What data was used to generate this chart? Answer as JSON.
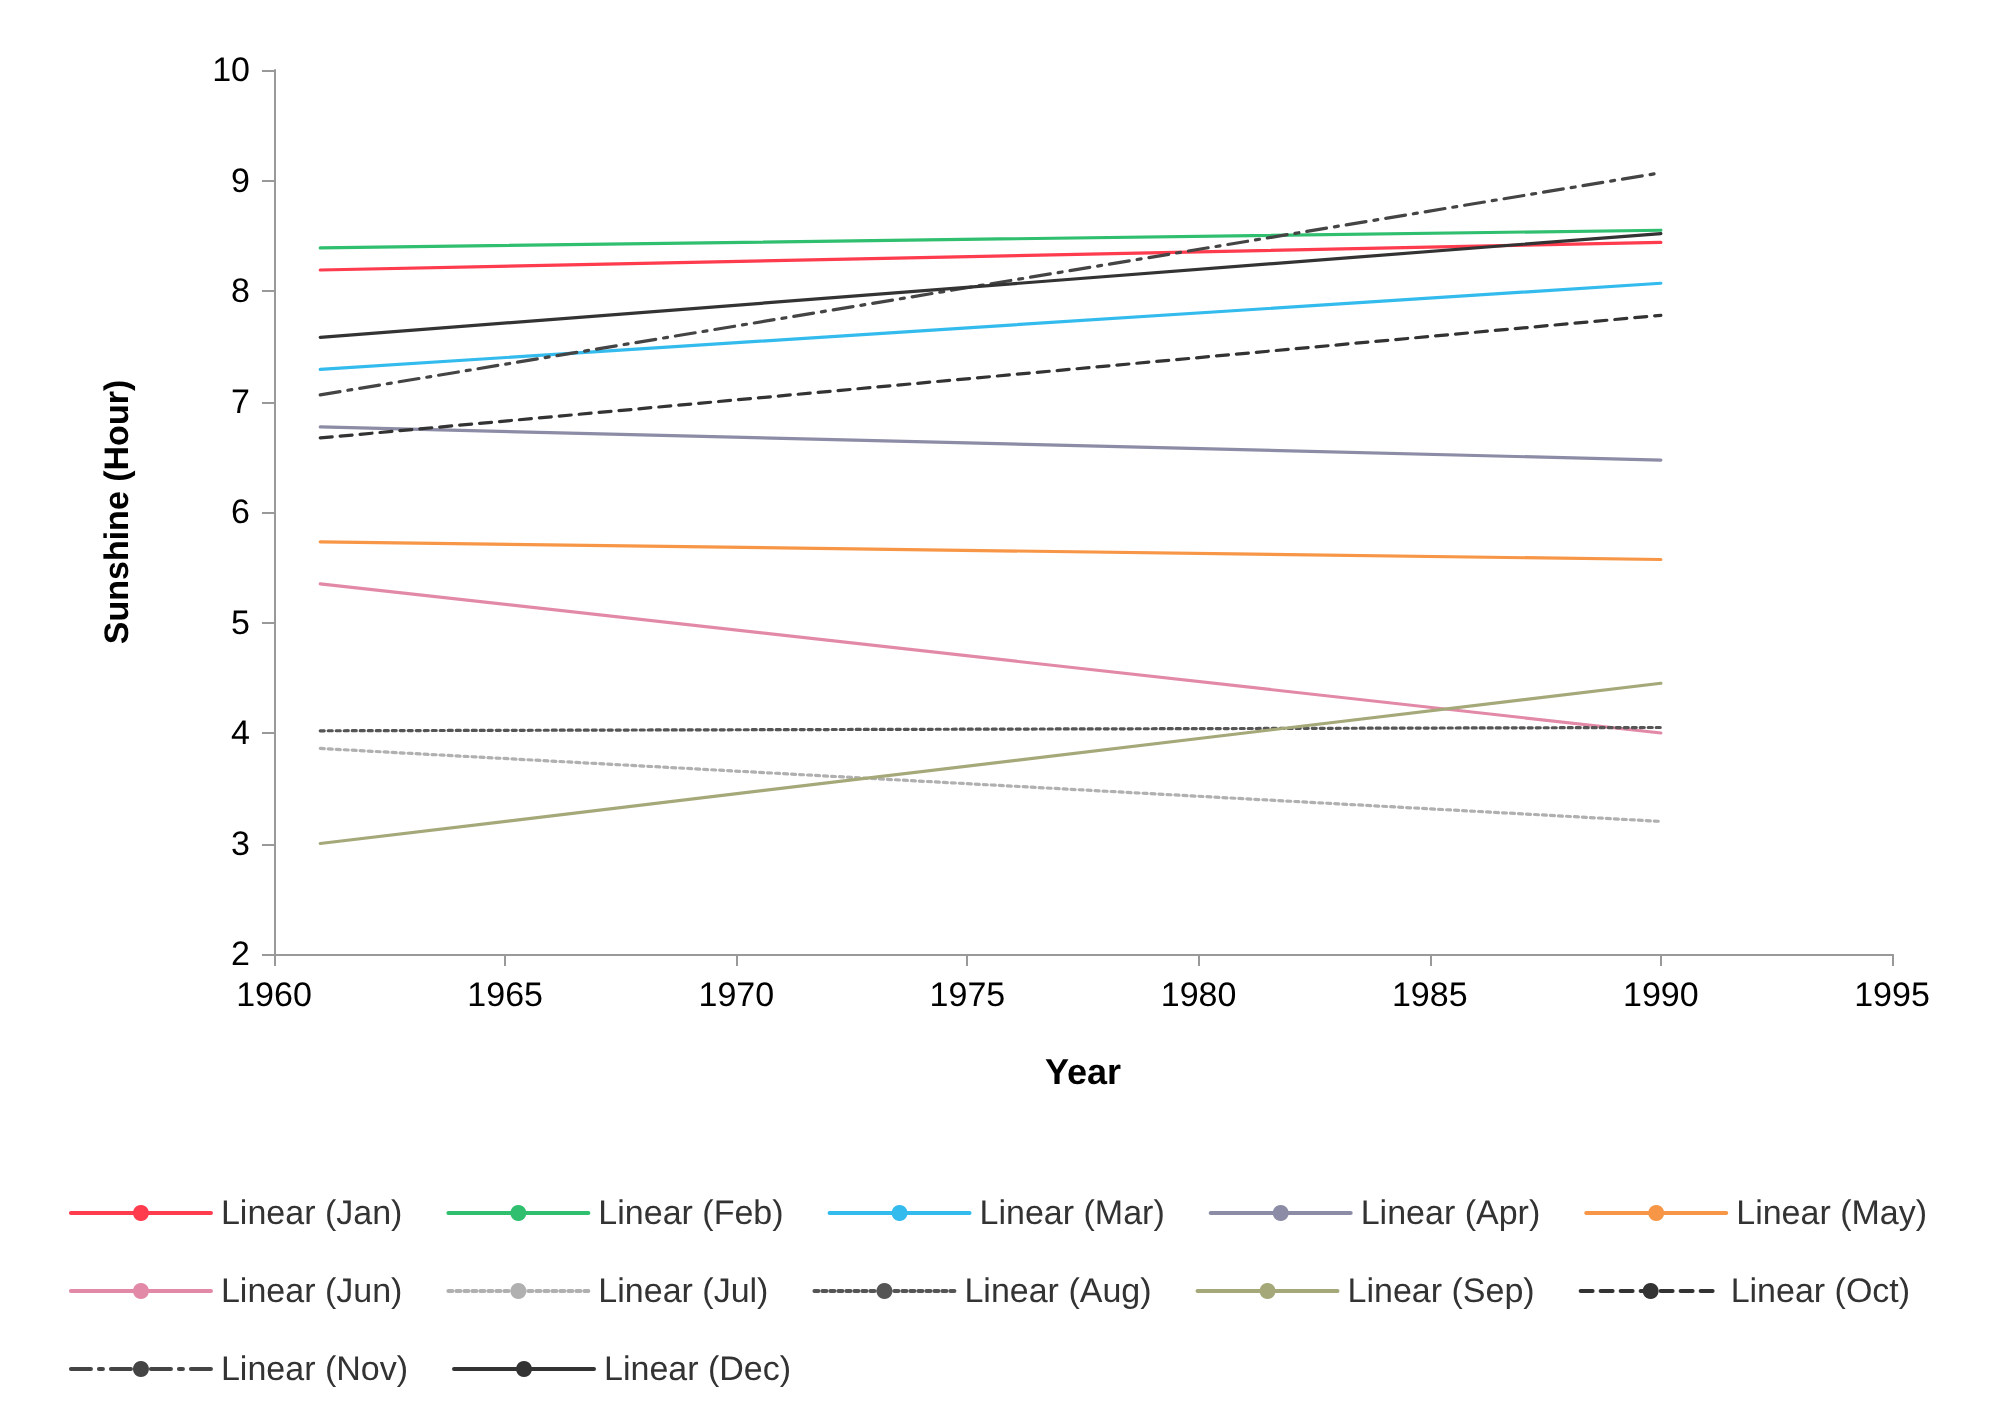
{
  "chart_data": {
    "type": "line",
    "xlabel": "Year",
    "ylabel": "Sunshine (Hour)",
    "x": [
      1961,
      1990
    ],
    "xlim": [
      1960,
      1995
    ],
    "xticks": [
      1960,
      1965,
      1970,
      1975,
      1980,
      1985,
      1990,
      1995
    ],
    "ylim": [
      2,
      10
    ],
    "yticks": [
      2,
      3,
      4,
      5,
      6,
      7,
      8,
      9,
      10
    ],
    "grid": false,
    "legend": "bottom",
    "marker": "none",
    "series": [
      {
        "name": "Linear (Jan)",
        "color": "#ff3b4e",
        "values": [
          8.19,
          8.44
        ]
      },
      {
        "name": "Linear (Feb)",
        "color": "#2fbf6f",
        "values": [
          8.39,
          8.55
        ]
      },
      {
        "name": "Linear (Mar)",
        "color": "#33bbee",
        "values": [
          7.29,
          8.07
        ]
      },
      {
        "name": "Linear (Apr)",
        "color": "#8c8ca6",
        "values": [
          6.77,
          6.47
        ]
      },
      {
        "name": "Linear (May)",
        "color": "#f79646",
        "values": [
          5.73,
          5.57
        ]
      },
      {
        "name": "Linear (Jun)",
        "color": "#e389a8",
        "values": [
          5.35,
          4.0
        ]
      },
      {
        "name": "Linear (Jul)",
        "color": "#b0b0b0",
        "values": [
          3.86,
          3.2
        ],
        "line_style": "dotted"
      },
      {
        "name": "Linear (Aug)",
        "color": "#555555",
        "values": [
          4.02,
          4.05
        ],
        "line_style": "dotted"
      },
      {
        "name": "Linear (Sep)",
        "color": "#a5a878",
        "values": [
          3.0,
          4.45
        ]
      },
      {
        "name": "Linear (Oct)",
        "color": "#333333",
        "values": [
          6.67,
          7.78
        ],
        "line_style": "dashed"
      },
      {
        "name": "Linear (Nov)",
        "color": "#444444",
        "values": [
          7.06,
          9.07
        ],
        "line_style": "dashdot"
      },
      {
        "name": "Linear (Dec)",
        "color": "#333333",
        "values": [
          7.58,
          8.52
        ]
      }
    ]
  }
}
